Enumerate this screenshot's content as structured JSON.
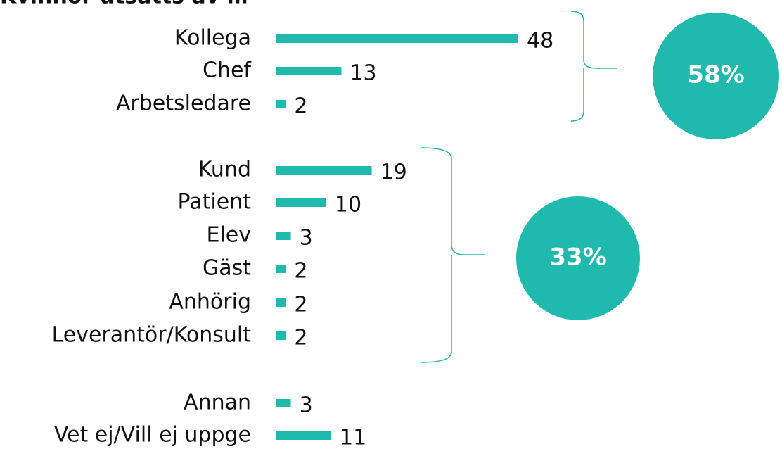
{
  "chart_data": {
    "type": "bar",
    "orientation": "horizontal",
    "title": "Kvinnor utsatts av …",
    "categories": [
      "Kollega",
      "Chef",
      "Arbetsledare",
      "Kund",
      "Patient",
      "Elev",
      "Gäst",
      "Anhörig",
      "Leverantör/Konsult",
      "Annan",
      "Vet ej/Vill ej uppge"
    ],
    "values": [
      48,
      13,
      2,
      19,
      10,
      3,
      2,
      2,
      2,
      3,
      11
    ],
    "color": "#20b9ad",
    "annotations": [
      {
        "value": 58,
        "label": "58%"
      },
      {
        "value": 33,
        "label": "33%"
      }
    ]
  }
}
